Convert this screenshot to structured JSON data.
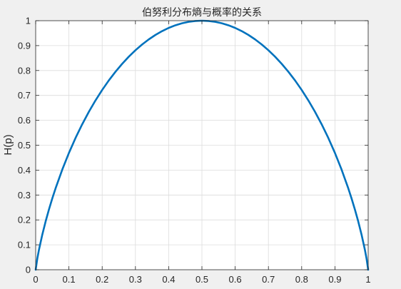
{
  "chart_data": {
    "type": "line",
    "title": "伯努利分布熵与概率的关系",
    "xlabel": "",
    "ylabel": "H(p)",
    "xlim": [
      0,
      1
    ],
    "ylim": [
      0,
      1
    ],
    "grid": true,
    "x_ticks": [
      "0",
      "0.1",
      "0.2",
      "0.3",
      "0.4",
      "0.5",
      "0.6",
      "0.7",
      "0.8",
      "0.9",
      "1"
    ],
    "y_ticks": [
      "0",
      "0.1",
      "0.2",
      "0.3",
      "0.4",
      "0.5",
      "0.6",
      "0.7",
      "0.8",
      "0.9",
      "1"
    ],
    "series": [
      {
        "color": "#0072bd",
        "x": [
          0.0,
          0.005,
          0.01,
          0.02,
          0.03,
          0.04,
          0.05,
          0.06,
          0.08,
          0.1,
          0.12,
          0.14,
          0.16,
          0.18,
          0.2,
          0.22,
          0.24,
          0.26,
          0.28,
          0.3,
          0.32,
          0.34,
          0.36,
          0.38,
          0.4,
          0.42,
          0.44,
          0.46,
          0.48,
          0.5,
          0.52,
          0.54,
          0.56,
          0.58,
          0.6,
          0.62,
          0.64,
          0.66,
          0.68,
          0.7,
          0.72,
          0.74,
          0.76,
          0.78,
          0.8,
          0.82,
          0.84,
          0.86,
          0.88,
          0.9,
          0.92,
          0.94,
          0.95,
          0.96,
          0.97,
          0.98,
          0.99,
          0.995,
          1.0
        ],
        "y": [
          0.0,
          0.0454,
          0.0808,
          0.1414,
          0.1944,
          0.2423,
          0.2864,
          0.3274,
          0.4022,
          0.469,
          0.5294,
          0.5842,
          0.6343,
          0.6801,
          0.7219,
          0.7602,
          0.795,
          0.8267,
          0.8555,
          0.8813,
          0.9044,
          0.9248,
          0.9427,
          0.958,
          0.971,
          0.9815,
          0.9896,
          0.9954,
          0.9988,
          1.0,
          0.9988,
          0.9954,
          0.9896,
          0.9815,
          0.971,
          0.958,
          0.9427,
          0.9248,
          0.9044,
          0.8813,
          0.8555,
          0.8267,
          0.795,
          0.7602,
          0.7219,
          0.6801,
          0.6343,
          0.5842,
          0.5294,
          0.469,
          0.4022,
          0.3274,
          0.2864,
          0.2423,
          0.1944,
          0.1414,
          0.0808,
          0.0454,
          0.0
        ]
      }
    ]
  }
}
